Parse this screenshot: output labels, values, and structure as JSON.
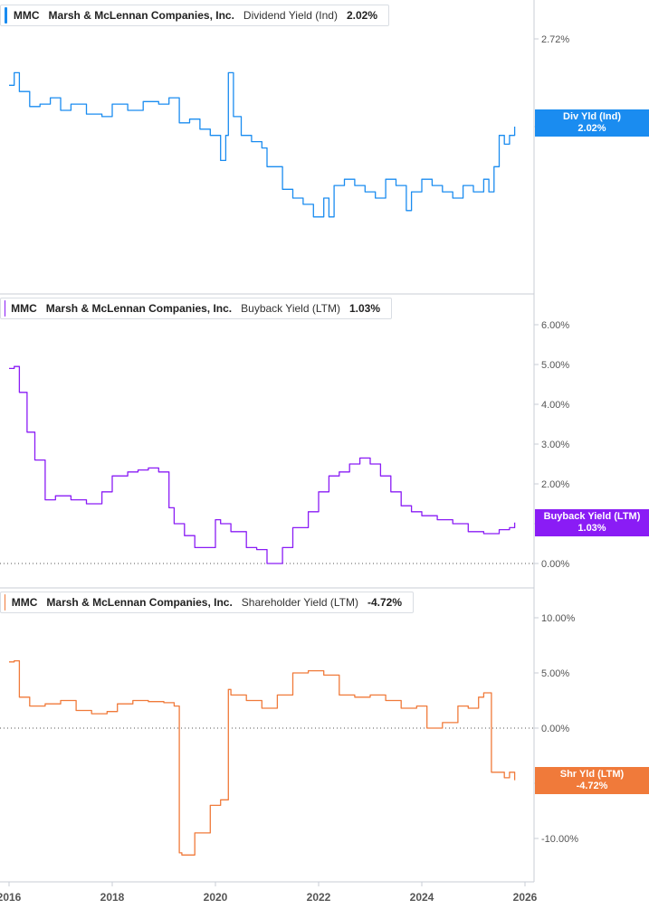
{
  "x_axis_labels": [
    "2016",
    "2018",
    "2020",
    "2022",
    "2024",
    "2026"
  ],
  "panels": [
    {
      "ticker": "MMC",
      "company": "Marsh & McLennan Companies, Inc.",
      "metric": "Dividend Yield (Ind)",
      "value": "2.02%",
      "tag_line1": "Div Yld (Ind)",
      "tag_line2": "2.02%",
      "color": "#1a8cf0",
      "y_ticks": [
        "2.72%",
        "2.02%"
      ]
    },
    {
      "ticker": "MMC",
      "company": "Marsh & McLennan Companies, Inc.",
      "metric": "Buyback Yield (LTM)",
      "value": "1.03%",
      "tag_line1": "Buyback Yield (LTM)",
      "tag_line2": "1.03%",
      "color": "#8a1cf5",
      "y_ticks": [
        "6.00%",
        "5.00%",
        "4.00%",
        "3.00%",
        "2.00%",
        "1.00%",
        "0.00%"
      ]
    },
    {
      "ticker": "MMC",
      "company": "Marsh & McLennan Companies, Inc.",
      "metric": "Shareholder Yield (LTM)",
      "value": "-4.72%",
      "tag_line1": "Shr Yld (LTM)",
      "tag_line2": "-4.72%",
      "color": "#f07a3a",
      "y_ticks": [
        "10.00%",
        "5.00%",
        "0.00%",
        "-5.00%",
        "-10.00%"
      ]
    }
  ],
  "chart_data": [
    {
      "type": "line",
      "title": "MMC Marsh & McLennan Companies, Inc. Dividend Yield (Ind) 2.02%",
      "x_range": [
        2016,
        2026
      ],
      "ylim": [
        1.15,
        2.95
      ],
      "series": [
        {
          "name": "Dividend Yield (Ind)",
          "x": [
            2016.0,
            2016.1,
            2016.2,
            2016.4,
            2016.6,
            2016.8,
            2017.0,
            2017.2,
            2017.5,
            2017.8,
            2018.0,
            2018.3,
            2018.6,
            2018.9,
            2019.1,
            2019.3,
            2019.5,
            2019.7,
            2019.9,
            2020.1,
            2020.2,
            2020.25,
            2020.35,
            2020.5,
            2020.7,
            2020.9,
            2021.0,
            2021.3,
            2021.5,
            2021.7,
            2021.9,
            2022.1,
            2022.2,
            2022.3,
            2022.5,
            2022.7,
            2022.9,
            2023.1,
            2023.3,
            2023.5,
            2023.7,
            2023.8,
            2024.0,
            2024.2,
            2024.4,
            2024.6,
            2024.8,
            2025.0,
            2025.2,
            2025.3,
            2025.4,
            2025.5,
            2025.6,
            2025.7,
            2025.8
          ],
          "values": [
            2.35,
            2.45,
            2.3,
            2.18,
            2.2,
            2.25,
            2.15,
            2.2,
            2.12,
            2.1,
            2.2,
            2.15,
            2.22,
            2.2,
            2.25,
            2.05,
            2.08,
            2.0,
            1.95,
            1.75,
            1.95,
            2.45,
            2.1,
            1.95,
            1.9,
            1.85,
            1.7,
            1.52,
            1.45,
            1.4,
            1.3,
            1.45,
            1.3,
            1.55,
            1.6,
            1.55,
            1.5,
            1.45,
            1.6,
            1.55,
            1.35,
            1.5,
            1.6,
            1.55,
            1.5,
            1.45,
            1.55,
            1.5,
            1.6,
            1.5,
            1.7,
            1.95,
            1.88,
            1.95,
            2.02
          ]
        }
      ]
    },
    {
      "type": "line",
      "title": "MMC Marsh & McLennan Companies, Inc. Buyback Yield (LTM) 1.03%",
      "x_range": [
        2016,
        2026
      ],
      "ylim": [
        -0.2,
        6.2
      ],
      "series": [
        {
          "name": "Buyback Yield (LTM)",
          "x": [
            2016.0,
            2016.1,
            2016.2,
            2016.35,
            2016.5,
            2016.7,
            2016.9,
            2017.2,
            2017.5,
            2017.8,
            2018.0,
            2018.3,
            2018.5,
            2018.7,
            2018.9,
            2019.1,
            2019.2,
            2019.4,
            2019.6,
            2019.8,
            2020.0,
            2020.1,
            2020.3,
            2020.6,
            2020.8,
            2021.0,
            2021.3,
            2021.5,
            2021.8,
            2022.0,
            2022.2,
            2022.4,
            2022.6,
            2022.8,
            2023.0,
            2023.2,
            2023.4,
            2023.6,
            2023.8,
            2024.0,
            2024.3,
            2024.6,
            2024.9,
            2025.2,
            2025.5,
            2025.7,
            2025.8
          ],
          "values": [
            4.9,
            4.95,
            4.3,
            3.3,
            2.6,
            1.6,
            1.7,
            1.6,
            1.5,
            1.8,
            2.2,
            2.3,
            2.35,
            2.4,
            2.3,
            1.4,
            1.0,
            0.7,
            0.4,
            0.4,
            1.1,
            1.0,
            0.8,
            0.4,
            0.35,
            0.0,
            0.4,
            0.9,
            1.3,
            1.8,
            2.2,
            2.3,
            2.5,
            2.65,
            2.5,
            2.2,
            1.8,
            1.45,
            1.3,
            1.2,
            1.1,
            1.0,
            0.8,
            0.75,
            0.85,
            0.9,
            1.03
          ]
        }
      ]
    },
    {
      "type": "line",
      "title": "MMC Marsh & McLennan Companies, Inc. Shareholder Yield (LTM) -4.72%",
      "x_range": [
        2016,
        2026
      ],
      "ylim": [
        -14.5,
        12.5
      ],
      "series": [
        {
          "name": "Shareholder Yield (LTM)",
          "x": [
            2016.0,
            2016.1,
            2016.2,
            2016.4,
            2016.7,
            2017.0,
            2017.3,
            2017.6,
            2017.9,
            2018.1,
            2018.4,
            2018.7,
            2019.0,
            2019.2,
            2019.3,
            2019.35,
            2019.6,
            2019.9,
            2020.1,
            2020.25,
            2020.3,
            2020.6,
            2020.9,
            2021.2,
            2021.5,
            2021.8,
            2022.1,
            2022.4,
            2022.7,
            2023.0,
            2023.3,
            2023.6,
            2023.9,
            2024.1,
            2024.4,
            2024.7,
            2024.9,
            2025.1,
            2025.2,
            2025.35,
            2025.6,
            2025.7,
            2025.8
          ],
          "values": [
            6.0,
            6.1,
            2.8,
            2.0,
            2.2,
            2.5,
            1.6,
            1.3,
            1.5,
            2.2,
            2.5,
            2.4,
            2.3,
            2.0,
            -11.3,
            -11.5,
            -9.5,
            -7.0,
            -6.5,
            3.5,
            3.0,
            2.5,
            1.8,
            3.0,
            5.0,
            5.2,
            4.8,
            3.0,
            2.8,
            3.0,
            2.5,
            1.8,
            2.0,
            0.0,
            0.5,
            2.0,
            1.8,
            2.8,
            3.2,
            -4.0,
            -4.5,
            -4.0,
            -4.72
          ]
        }
      ]
    }
  ]
}
